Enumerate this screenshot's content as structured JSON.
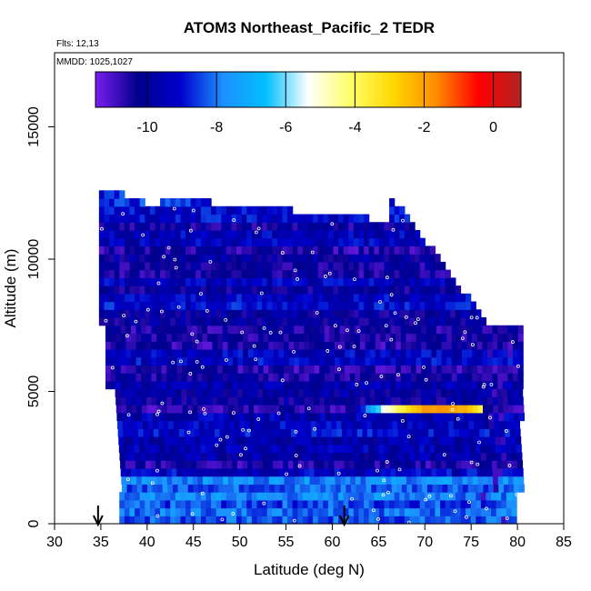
{
  "chart_data": {
    "type": "heatmap",
    "title": "ATOM3 Northeast_Pacific_2 TEDR",
    "flights_label": "Flts: 12,13",
    "dates_label": "MMDD: 1025,1027",
    "xlabel": "Latitude (deg N)",
    "ylabel": "Altitude (m)",
    "xlim": [
      30,
      85
    ],
    "ylim": [
      0,
      17800
    ],
    "x_ticks": [
      "30",
      "35",
      "40",
      "45",
      "50",
      "55",
      "60",
      "65",
      "70",
      "75",
      "80",
      "85"
    ],
    "y_ticks": [
      "0",
      "5000",
      "10000",
      "15000"
    ],
    "colorbar": {
      "range": [
        -11.5,
        0.8
      ],
      "tick_labels": [
        "-10",
        "-8",
        "-6",
        "-4",
        "-2",
        "0"
      ],
      "colors": [
        "#7a1df0",
        "#00008b",
        "#0000cd",
        "#1e90ff",
        "#00bfff",
        "#ffffff",
        "#ffff66",
        "#ffd700",
        "#ff8c00",
        "#ff0000",
        "#b22222"
      ]
    },
    "flight_markers_lat": [
      34.7,
      61.3
    ],
    "notable_feature": {
      "lat": [
        62,
        75
      ],
      "alt": [
        4000,
        4500
      ],
      "value": -1.5
    }
  }
}
